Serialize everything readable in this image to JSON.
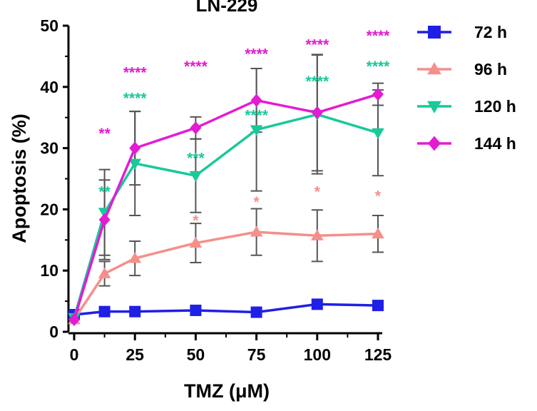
{
  "chart_data": {
    "type": "line",
    "title": "LN-229",
    "xlabel": "TMZ (μM)",
    "ylabel": "Apoptosis (%)",
    "xlim": [
      0,
      125
    ],
    "ylim": [
      0,
      50
    ],
    "x": [
      0,
      12.5,
      25,
      50,
      75,
      100,
      125
    ],
    "x_ticks": [
      0,
      25,
      50,
      75,
      100,
      125
    ],
    "y_ticks": [
      0,
      10,
      20,
      30,
      40,
      50
    ],
    "grid": false,
    "legend_position": "right",
    "series": [
      {
        "name": "72 h",
        "color": "#1f1fe6",
        "marker": "square",
        "values": [
          2.8,
          3.3,
          3.3,
          3.5,
          3.2,
          4.5,
          4.3
        ],
        "errors": [
          0,
          0,
          0,
          0,
          0,
          0,
          0
        ]
      },
      {
        "name": "96 h",
        "color": "#f58f8b",
        "marker": "triangle-up",
        "values": [
          2.0,
          9.5,
          12.0,
          14.5,
          16.3,
          15.7,
          16.0
        ],
        "errors": [
          0,
          2.0,
          2.8,
          3.2,
          3.8,
          4.2,
          3.0
        ]
      },
      {
        "name": "120 h",
        "color": "#19c99a",
        "marker": "triangle-down",
        "values": [
          2.3,
          19.5,
          27.5,
          25.5,
          33.0,
          35.5,
          32.5
        ],
        "errors": [
          0,
          7.0,
          8.5,
          6.0,
          10.0,
          9.7,
          7.0
        ]
      },
      {
        "name": "144 h",
        "color": "#e31bd3",
        "marker": "diamond",
        "values": [
          2.0,
          18.3,
          30.0,
          33.3,
          37.8,
          35.8,
          38.8
        ],
        "errors": [
          0,
          6.5,
          6.0,
          1.8,
          5.2,
          9.5,
          1.8
        ]
      }
    ],
    "annotations": [
      {
        "series": "144 h",
        "x": 12.5,
        "y": 32.5,
        "text": "**"
      },
      {
        "series": "144 h",
        "x": 25,
        "y": 42.5,
        "text": "****"
      },
      {
        "series": "144 h",
        "x": 50,
        "y": 43.5,
        "text": "****"
      },
      {
        "series": "144 h",
        "x": 75,
        "y": 45.5,
        "text": "****"
      },
      {
        "series": "144 h",
        "x": 100,
        "y": 47.0,
        "text": "****"
      },
      {
        "series": "144 h",
        "x": 125,
        "y": 48.5,
        "text": "****"
      },
      {
        "series": "120 h",
        "x": 12.5,
        "y": 23.0,
        "text": "**"
      },
      {
        "series": "120 h",
        "x": 25,
        "y": 38.3,
        "text": "****"
      },
      {
        "series": "120 h",
        "x": 50,
        "y": 28.5,
        "text": "***"
      },
      {
        "series": "120 h",
        "x": 75,
        "y": 35.5,
        "text": "****"
      },
      {
        "series": "120 h",
        "x": 100,
        "y": 41.0,
        "text": "****"
      },
      {
        "series": "120 h",
        "x": 125,
        "y": 43.5,
        "text": "****"
      },
      {
        "series": "96 h",
        "x": 50,
        "y": 18.3,
        "text": "*"
      },
      {
        "series": "96 h",
        "x": 75,
        "y": 21.3,
        "text": "*"
      },
      {
        "series": "96 h",
        "x": 100,
        "y": 23.0,
        "text": "*"
      },
      {
        "series": "96 h",
        "x": 125,
        "y": 22.3,
        "text": "*"
      }
    ]
  }
}
